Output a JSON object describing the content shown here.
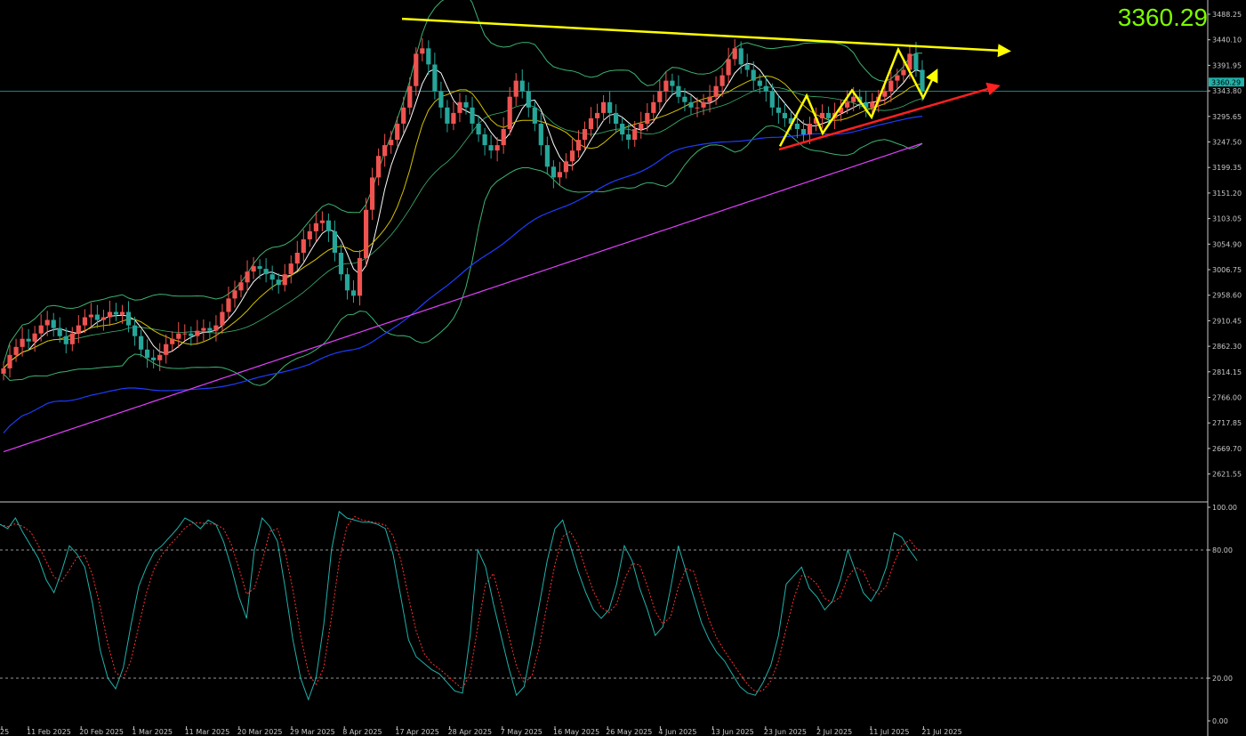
{
  "header": {
    "price_readout": "3360.29"
  },
  "colors": {
    "background": "#000000",
    "bull_candle": "#ef5350",
    "bear_candle": "#26a69a",
    "bollinger": "#3cb371",
    "ma_fast": "#ffffff",
    "ma_mid": "#d4c200",
    "ma_slow": "#1e3cff",
    "ma_long": "#e040fb",
    "stoch_main": "#20b2aa",
    "stoch_signal": "#ff3030",
    "resistance_line": "#ffff00",
    "support_line": "#ff2020",
    "zigzag": "#ffff00",
    "price_line": "#20b2aa",
    "price_readout": "#7cfc00"
  },
  "chart_data": {
    "type": "candlestick",
    "price_axis": {
      "ticks": [
        "3488.25",
        "3440.10",
        "3391.95",
        "3343.80",
        "3295.65",
        "3247.50",
        "3199.35",
        "3151.20",
        "3103.05",
        "3054.90",
        "3006.75",
        "2958.60",
        "2910.45",
        "2862.30",
        "2814.15",
        "2766.00",
        "2717.85",
        "2669.70",
        "2621.55"
      ],
      "current_price_label": "3360.29",
      "ylim": [
        2600,
        3520
      ]
    },
    "date_axis": {
      "ticks": [
        "25",
        "11 Feb 2025",
        "20 Feb 2025",
        "1 Mar 2025",
        "11 Mar 2025",
        "20 Mar 2025",
        "29 Mar 2025",
        "8 Apr 2025",
        "17 Apr 2025",
        "28 Apr 2025",
        "7 May 2025",
        "16 May 2025",
        "26 May 2025",
        "4 Jun 2025",
        "13 Jun 2025",
        "23 Jun 2025",
        "2 Jul 2025",
        "11 Jul 2025",
        "21 Jul 2025"
      ]
    },
    "closes": [
      2845,
      2870,
      2885,
      2900,
      2895,
      2910,
      2925,
      2935,
      2920,
      2905,
      2890,
      2910,
      2925,
      2940,
      2945,
      2935,
      2940,
      2950,
      2945,
      2950,
      2925,
      2905,
      2880,
      2865,
      2860,
      2870,
      2890,
      2900,
      2910,
      2910,
      2905,
      2915,
      2920,
      2915,
      2925,
      2950,
      2975,
      2990,
      3005,
      3025,
      3035,
      3030,
      3020,
      3010,
      3000,
      3020,
      3040,
      3060,
      3085,
      3100,
      3115,
      3120,
      3100,
      3060,
      3020,
      2990,
      2980,
      3050,
      3140,
      3200,
      3240,
      3260,
      3270,
      3300,
      3330,
      3370,
      3430,
      3440,
      3410,
      3360,
      3330,
      3300,
      3320,
      3340,
      3330,
      3300,
      3280,
      3260,
      3250,
      3260,
      3290,
      3350,
      3380,
      3360,
      3330,
      3300,
      3260,
      3220,
      3200,
      3210,
      3230,
      3250,
      3270,
      3290,
      3310,
      3320,
      3340,
      3320,
      3300,
      3280,
      3270,
      3290,
      3300,
      3320,
      3340,
      3360,
      3380,
      3370,
      3350,
      3340,
      3330,
      3330,
      3340,
      3350,
      3370,
      3390,
      3420,
      3440,
      3410,
      3400,
      3380,
      3370,
      3360,
      3330,
      3320,
      3310,
      3300,
      3290,
      3280,
      3300,
      3310,
      3320,
      3310,
      3320,
      3330,
      3340,
      3350,
      3340,
      3330,
      3340,
      3350,
      3360,
      3380,
      3390,
      3400,
      3430,
      3400,
      3360
    ],
    "stochastic": {
      "levels": [
        "100.00",
        "80.00",
        "20.00",
        "0.00"
      ],
      "main": [
        92,
        90,
        95,
        88,
        82,
        76,
        66,
        60,
        70,
        82,
        78,
        72,
        55,
        33,
        20,
        15,
        25,
        45,
        63,
        72,
        79,
        82,
        86,
        90,
        95,
        93,
        90,
        94,
        92,
        84,
        72,
        58,
        48,
        80,
        95,
        91,
        84,
        62,
        38,
        20,
        10,
        20,
        45,
        80,
        98,
        95,
        94,
        93,
        93,
        92,
        90,
        78,
        58,
        38,
        30,
        27,
        24,
        22,
        18,
        14,
        13,
        40,
        80,
        72,
        55,
        40,
        25,
        12,
        16,
        35,
        55,
        75,
        90,
        94,
        82,
        70,
        60,
        52,
        48,
        52,
        64,
        82,
        75,
        62,
        52,
        40,
        44,
        62,
        82,
        70,
        58,
        46,
        38,
        32,
        28,
        22,
        16,
        13,
        12,
        18,
        26,
        40,
        64,
        68,
        72,
        62,
        58,
        52,
        56,
        66,
        80,
        70,
        60,
        56,
        62,
        72,
        88,
        86,
        80,
        75
      ]
    }
  }
}
